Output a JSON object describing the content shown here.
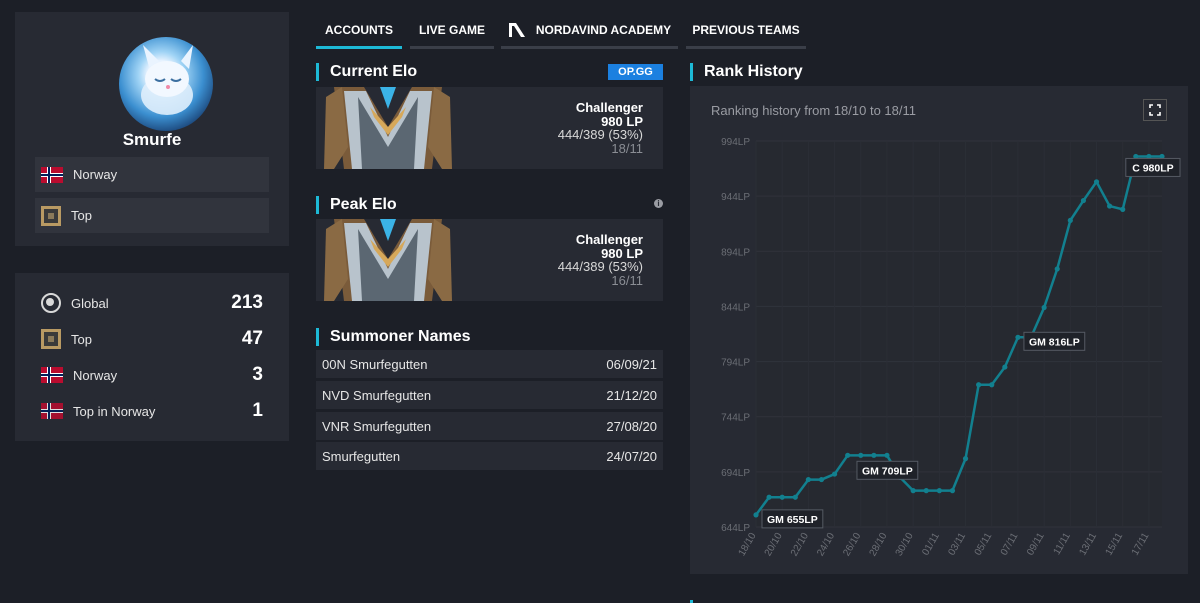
{
  "profile": {
    "name": "Smurfe",
    "country": "Norway",
    "role": "Top"
  },
  "rankings": [
    {
      "label": "Global",
      "value": "213",
      "icon": "globe-icon"
    },
    {
      "label": "Top",
      "value": "47",
      "icon": "lane-top-icon"
    },
    {
      "label": "Norway",
      "value": "3",
      "icon": "norway-flag-icon"
    },
    {
      "label": "Top in Norway",
      "value": "1",
      "icon": "norway-flag-icon"
    }
  ],
  "tabs": [
    {
      "label": "ACCOUNTS",
      "active": true
    },
    {
      "label": "LIVE GAME",
      "active": false
    },
    {
      "label": "NORDAVIND ACADEMY",
      "active": false
    },
    {
      "label": "PREVIOUS TEAMS",
      "active": false
    }
  ],
  "current_elo": {
    "title": "Current Elo",
    "badge": "OP.GG",
    "tier": "Challenger",
    "lp": "980 LP",
    "record": "444/389 (53%)",
    "date": "18/11"
  },
  "peak_elo": {
    "title": "Peak Elo",
    "info": "i",
    "tier": "Challenger",
    "lp": "980 LP",
    "record": "444/389 (53%)",
    "date": "16/11"
  },
  "summoner_names": {
    "title": "Summoner Names",
    "rows": [
      {
        "name": "00N Smurfegutten",
        "date": "06/09/21"
      },
      {
        "name": "NVD Smurfegutten",
        "date": "21/12/20"
      },
      {
        "name": "VNR Smurfegutten",
        "date": "27/08/20"
      },
      {
        "name": "Smurfegutten",
        "date": "24/07/20"
      }
    ]
  },
  "rank_history": {
    "title": "Rank History",
    "subtitle": "Ranking history from 18/10 to 18/11"
  },
  "colors": {
    "accent": "#1db9d6",
    "line": "#12808f",
    "background": "#1c1f27",
    "panel": "#272a33"
  },
  "chart_data": {
    "type": "line",
    "title": "Rank History",
    "subtitle": "Ranking history from 18/10 to 18/11",
    "y_ticks": [
      "994LP",
      "944LP",
      "894LP",
      "844LP",
      "794LP",
      "744LP",
      "694LP",
      "644LP"
    ],
    "x_ticks": [
      "18/10",
      "20/10",
      "22/10",
      "24/10",
      "26/10",
      "28/10",
      "30/10",
      "01/11",
      "03/11",
      "05/11",
      "07/11",
      "09/11",
      "11/11",
      "13/11",
      "15/11",
      "17/11"
    ],
    "ylim": [
      644,
      994
    ],
    "grid": true,
    "x": [
      0,
      1,
      2,
      3,
      4,
      5,
      6,
      7,
      8,
      9,
      10,
      11,
      12,
      13,
      14,
      15,
      16,
      17,
      18,
      19,
      20,
      21,
      22,
      23,
      24,
      25,
      26,
      27,
      28,
      29,
      30,
      31
    ],
    "values": [
      655,
      671,
      671,
      671,
      687,
      687,
      692,
      709,
      709,
      709,
      709,
      689,
      677,
      677,
      677,
      677,
      706,
      773,
      773,
      789,
      816,
      816,
      843,
      878,
      922,
      940,
      957,
      935,
      932,
      980,
      980,
      980
    ],
    "annotations": [
      {
        "index": 0,
        "label": "GM 655LP"
      },
      {
        "index": 10,
        "label": "GM 709LP"
      },
      {
        "index": 20,
        "label": "GM 816LP"
      },
      {
        "index": 29,
        "label": "C 980LP"
      }
    ]
  }
}
